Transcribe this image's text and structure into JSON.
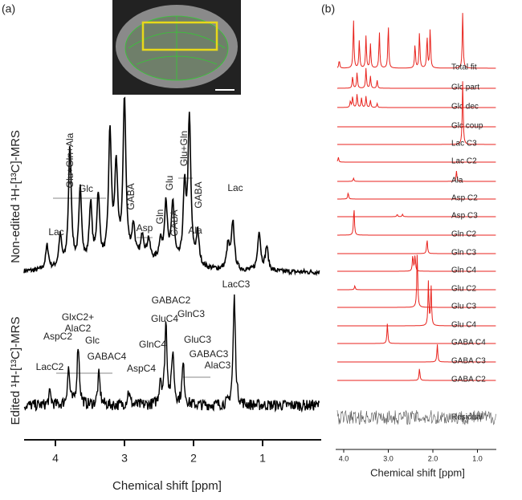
{
  "panel_a": {
    "label": "(a)",
    "top_ylabel": "Non-edited ¹H-[¹³C]-MRS",
    "bottom_ylabel": "Edited ¹H-[¹³C]-MRS",
    "top_peaks": [
      "Lac",
      "Glu+Gln+Ala",
      "Glc",
      "GABA",
      "Asp",
      "Gln",
      "Glu",
      "GABA",
      "Glu+Gln",
      "GABA",
      "Ala",
      "Lac"
    ],
    "bottom_peaks": [
      "LacC2",
      "AspC2",
      [
        "GlxC2+",
        "AlaC2"
      ],
      "Glc",
      "GABAC4",
      "AspC4",
      "GlnC4",
      "GluC4",
      "GABAC2",
      "GlnC3",
      "GluC3",
      "GABAC3",
      "AlaC3",
      "LacC3"
    ],
    "xticks": [
      4,
      3,
      2,
      1
    ],
    "xlabel": "Chemical shift [ppm]"
  },
  "panel_b": {
    "label": "(b)",
    "traces": [
      "Total fit",
      "Glc part",
      "Glc dec",
      "Glc coup",
      "Lac C3",
      "Lac C2",
      "Ala",
      "Asp C2",
      "Asp C3",
      "Gln C2",
      "Gln C3",
      "Gln C4",
      "Glu C2",
      "Glu C3",
      "Glu C4",
      "GABA C4",
      "GABA C3",
      "GABA C2",
      "Residual"
    ],
    "xticks": [
      {
        "value": 4,
        "label": "4.0"
      },
      {
        "value": 3,
        "label": "3.0"
      },
      {
        "value": 2,
        "label": "2.0"
      },
      {
        "value": 1,
        "label": "1.0"
      }
    ],
    "xlabel": "Chemical shift [ppm]"
  }
}
